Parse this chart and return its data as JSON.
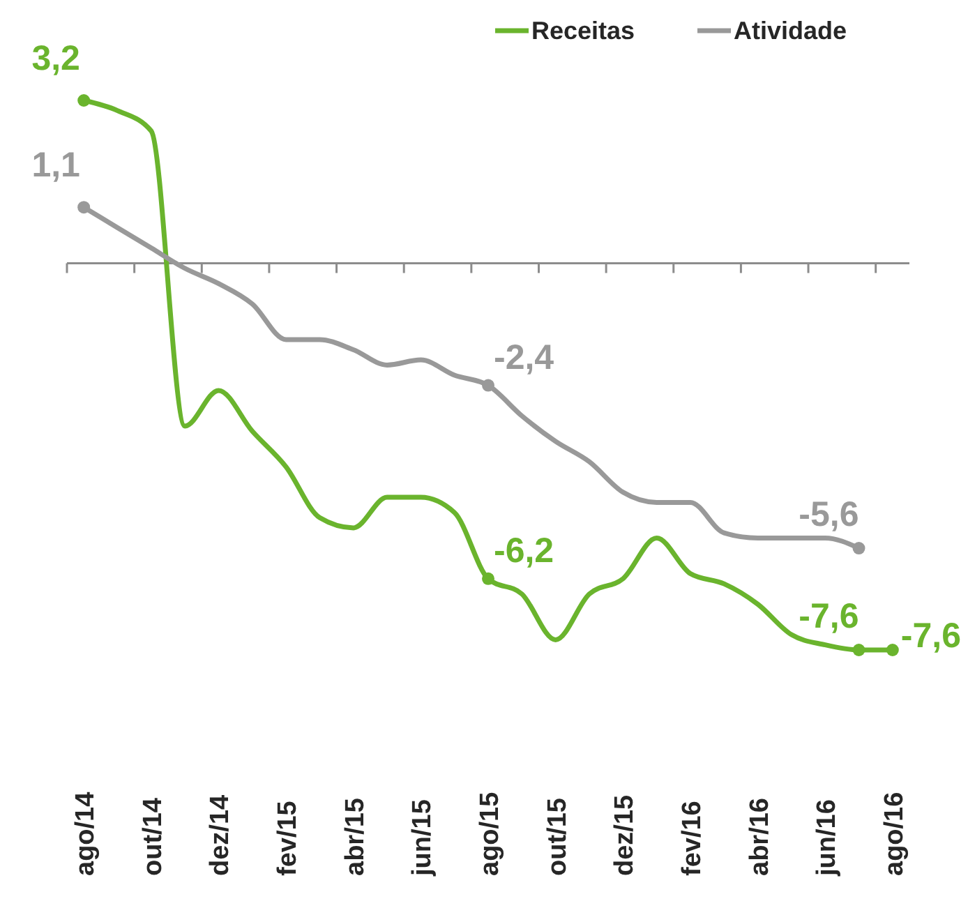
{
  "chart_data": {
    "type": "line",
    "categories": [
      "ago/14",
      null,
      "out/14",
      null,
      "dez/14",
      null,
      "fev/15",
      null,
      "abr/15",
      null,
      "jun/15",
      null,
      "ago/15",
      null,
      "out/15",
      null,
      "dez/15",
      null,
      "fev/16",
      null,
      "abr/16",
      null,
      "jun/16",
      null,
      "ago/16"
    ],
    "legend": "top right",
    "marker": "none",
    "line_style": "solid",
    "tick_labels": "x",
    "series": [
      {
        "name": "Receitas",
        "color": "#6ab42d",
        "values": [
          3.2,
          3.0,
          2.6,
          -3.2,
          -2.5,
          -3.3,
          -4.0,
          -5.0,
          -5.2,
          -4.6,
          -4.6,
          -4.9,
          -6.2,
          -6.5,
          -7.4,
          -6.5,
          -6.2,
          -5.4,
          -6.1,
          -6.3,
          -6.7,
          -7.3,
          -7.5,
          -7.6,
          -7.6
        ],
        "value_labels": [
          "3,2",
          null,
          null,
          null,
          null,
          null,
          null,
          null,
          null,
          null,
          null,
          null,
          "-6,2",
          null,
          null,
          null,
          null,
          null,
          null,
          null,
          null,
          null,
          null,
          "-7,6",
          "-7,6"
        ]
      },
      {
        "name": "Atividade",
        "color": "#999999",
        "values": [
          1.1,
          0.7,
          0.3,
          -0.1,
          -0.4,
          -0.8,
          -1.5,
          -1.5,
          -1.7,
          -2.0,
          -1.9,
          -2.2,
          -2.4,
          -3.0,
          -3.5,
          -3.9,
          -4.5,
          -4.7,
          -4.7,
          -5.3,
          -5.4,
          -5.4,
          -5.4,
          -5.6,
          null
        ],
        "value_labels": [
          "1,1",
          null,
          null,
          null,
          null,
          null,
          null,
          null,
          null,
          null,
          null,
          null,
          "-2,4",
          null,
          null,
          null,
          null,
          null,
          null,
          null,
          null,
          null,
          null,
          "-5,6",
          null
        ]
      }
    ]
  }
}
